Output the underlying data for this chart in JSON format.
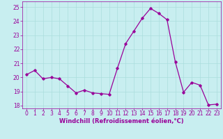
{
  "x": [
    0,
    1,
    2,
    3,
    4,
    5,
    6,
    7,
    8,
    9,
    10,
    11,
    12,
    13,
    14,
    15,
    16,
    17,
    18,
    19,
    20,
    21,
    22,
    23
  ],
  "y": [
    20.2,
    20.5,
    19.9,
    20.0,
    19.9,
    19.4,
    18.9,
    19.1,
    18.9,
    18.85,
    18.8,
    20.65,
    22.4,
    23.3,
    24.2,
    24.9,
    24.55,
    24.1,
    21.1,
    18.95,
    19.65,
    19.45,
    18.05,
    18.1
  ],
  "line_color": "#990099",
  "marker": "D",
  "marker_size": 1.8,
  "bg_color": "#c8eef0",
  "grid_color": "#aadddd",
  "xlabel": "Windchill (Refroidissement éolien,°C)",
  "xlabel_color": "#990099",
  "tick_color": "#990099",
  "ylim": [
    17.8,
    25.4
  ],
  "xlim": [
    -0.5,
    23.5
  ],
  "yticks": [
    18,
    19,
    20,
    21,
    22,
    23,
    24,
    25
  ],
  "xticks": [
    0,
    1,
    2,
    3,
    4,
    5,
    6,
    7,
    8,
    9,
    10,
    11,
    12,
    13,
    14,
    15,
    16,
    17,
    18,
    19,
    20,
    21,
    22,
    23
  ],
  "tick_fontsize": 5.5,
  "xlabel_fontsize": 6.0
}
